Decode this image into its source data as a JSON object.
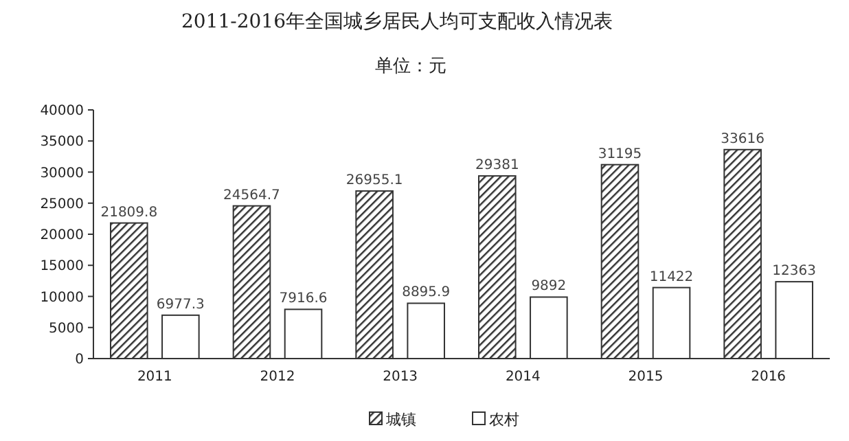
{
  "chart_data": {
    "type": "bar",
    "title": "2011-2016年全国城乡居民人均可支配收入情况表",
    "subtitle": "单位：元",
    "categories": [
      "2011",
      "2012",
      "2013",
      "2014",
      "2015",
      "2016"
    ],
    "series": [
      {
        "name": "城镇",
        "color": "#333333",
        "values": [
          21809.8,
          24564.7,
          26955.1,
          29381,
          31195,
          33616
        ]
      },
      {
        "name": "农村",
        "color": "#ffffff",
        "values": [
          6977.3,
          7916.6,
          8895.9,
          9892,
          11422,
          12363
        ]
      }
    ],
    "ylim": [
      0,
      40000
    ],
    "yticks": [
      0,
      5000,
      10000,
      15000,
      20000,
      25000,
      30000,
      35000,
      40000
    ],
    "grid": false,
    "legend": "bottom",
    "data_labels": true
  }
}
